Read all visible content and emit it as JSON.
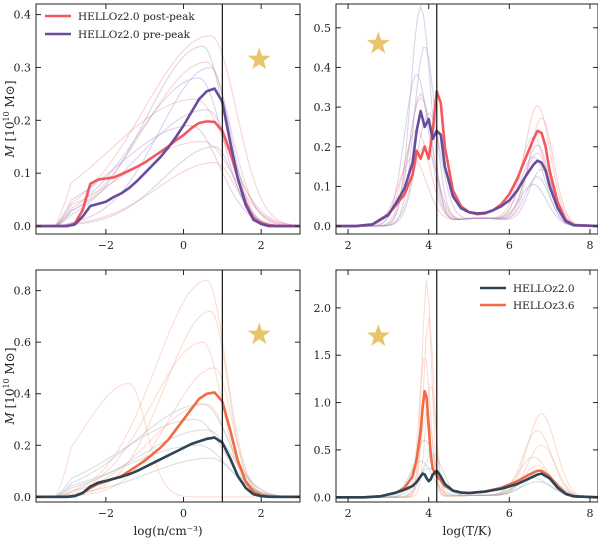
{
  "chart_data": [
    {
      "type": "line",
      "panel": "top-left",
      "xlim": [
        -3.8,
        3.0
      ],
      "ylim": [
        -0.015,
        0.42
      ],
      "xticks": [
        -2,
        0,
        2
      ],
      "yticks": [
        0.0,
        0.1,
        0.2,
        0.3,
        0.4
      ],
      "xlabel": "",
      "ylabel": "M [10^10 M⊙]",
      "vline_x": 1.0,
      "star": {
        "x": 1.95,
        "y": 0.315
      },
      "legend": {
        "placement": "top-left"
      },
      "bg_series": [
        {
          "color": "#f28b8b",
          "peak": 0.36,
          "center": 0.7,
          "width": 1.2
        },
        {
          "color": "#f28b8b",
          "peak": 0.31,
          "center": 0.6,
          "width": 1.1
        },
        {
          "color": "#f28b8b",
          "peak": 0.24,
          "center": 0.3,
          "width": 1.5
        },
        {
          "color": "#f28b8b",
          "peak": 0.16,
          "center": 0.5,
          "width": 1.4
        },
        {
          "color": "#f28b8b",
          "peak": 0.12,
          "center": 0.8,
          "width": 1.0
        },
        {
          "color": "#9a8fc8",
          "peak": 0.34,
          "center": 0.5,
          "width": 1.0
        },
        {
          "color": "#9a8fc8",
          "peak": 0.3,
          "center": 0.7,
          "width": 0.9
        },
        {
          "color": "#9a8fc8",
          "peak": 0.28,
          "center": 0.4,
          "width": 1.1
        },
        {
          "color": "#9a8fc8",
          "peak": 0.22,
          "center": 0.6,
          "width": 1.2
        },
        {
          "color": "#9a8fc8",
          "peak": 0.19,
          "center": 0.2,
          "width": 1.3
        },
        {
          "color": "#9a8fc8",
          "peak": 0.15,
          "center": 0.8,
          "width": 0.9
        }
      ],
      "series": [
        {
          "name": "HELLOz2.0 post-peak",
          "color": "#f4585c",
          "x": [
            -3.8,
            -3.0,
            -2.8,
            -2.6,
            -2.4,
            -2.2,
            -2.0,
            -1.8,
            -1.6,
            -1.4,
            -1.2,
            -1.0,
            -0.8,
            -0.6,
            -0.4,
            -0.2,
            0.0,
            0.2,
            0.4,
            0.6,
            0.8,
            1.0,
            1.2,
            1.4,
            1.6,
            1.8,
            2.0,
            2.2,
            2.4,
            2.6,
            2.8,
            3.0
          ],
          "y": [
            0.0,
            0.0,
            0.005,
            0.03,
            0.08,
            0.088,
            0.09,
            0.092,
            0.098,
            0.105,
            0.112,
            0.12,
            0.13,
            0.14,
            0.15,
            0.162,
            0.172,
            0.185,
            0.195,
            0.198,
            0.197,
            0.18,
            0.14,
            0.09,
            0.045,
            0.015,
            0.005,
            0.002,
            0.0,
            0.0,
            0.0,
            0.0
          ]
        },
        {
          "name": "HELLOz2.0 pre-peak",
          "color": "#6a4c9c",
          "x": [
            -3.8,
            -3.0,
            -2.8,
            -2.6,
            -2.4,
            -2.2,
            -2.0,
            -1.8,
            -1.6,
            -1.4,
            -1.2,
            -1.0,
            -0.8,
            -0.6,
            -0.4,
            -0.2,
            0.0,
            0.2,
            0.4,
            0.6,
            0.8,
            1.0,
            1.2,
            1.4,
            1.6,
            1.8,
            2.0,
            2.2,
            2.4,
            2.6,
            2.8,
            3.0
          ],
          "y": [
            0.0,
            0.0,
            0.003,
            0.018,
            0.038,
            0.042,
            0.046,
            0.055,
            0.062,
            0.072,
            0.085,
            0.1,
            0.115,
            0.13,
            0.148,
            0.168,
            0.19,
            0.215,
            0.24,
            0.255,
            0.26,
            0.235,
            0.16,
            0.09,
            0.04,
            0.012,
            0.004,
            0.0,
            0.0,
            0.0,
            0.0,
            0.0
          ]
        }
      ]
    },
    {
      "type": "line",
      "panel": "top-right",
      "xlim": [
        1.7,
        8.2
      ],
      "ylim": [
        -0.02,
        0.56
      ],
      "xticks": [
        2,
        4,
        6,
        8
      ],
      "yticks": [
        0.0,
        0.1,
        0.2,
        0.3,
        0.4,
        0.5
      ],
      "xlabel": "",
      "ylabel": "",
      "vline_x": 4.2,
      "star": {
        "x": 2.75,
        "y": 0.46
      },
      "bg_series": [
        {
          "color": "#f28b8b",
          "peaks": [
            [
              3.8,
              0.32,
              0.3
            ],
            [
              6.7,
              0.3,
              0.32
            ]
          ]
        },
        {
          "color": "#f28b8b",
          "peaks": [
            [
              3.7,
              0.24,
              0.32
            ],
            [
              6.8,
              0.27,
              0.3
            ]
          ]
        },
        {
          "color": "#f28b8b",
          "peaks": [
            [
              3.9,
              0.2,
              0.3
            ],
            [
              6.6,
              0.22,
              0.33
            ]
          ]
        },
        {
          "color": "#f28b8b",
          "peaks": [
            [
              3.6,
              0.17,
              0.35
            ],
            [
              6.7,
              0.18,
              0.32
            ]
          ]
        },
        {
          "color": "#9a8fc8",
          "peaks": [
            [
              3.8,
              0.55,
              0.25
            ],
            [
              6.7,
              0.2,
              0.3
            ]
          ]
        },
        {
          "color": "#9a8fc8",
          "peaks": [
            [
              3.9,
              0.45,
              0.26
            ],
            [
              6.6,
              0.17,
              0.32
            ]
          ]
        },
        {
          "color": "#9a8fc8",
          "peaks": [
            [
              3.7,
              0.38,
              0.3
            ],
            [
              6.8,
              0.14,
              0.3
            ]
          ]
        },
        {
          "color": "#9a8fc8",
          "peaks": [
            [
              3.8,
              0.33,
              0.28
            ],
            [
              6.7,
              0.12,
              0.3
            ]
          ]
        },
        {
          "color": "#9a8fc8",
          "peaks": [
            [
              4.0,
              0.28,
              0.3
            ],
            [
              6.6,
              0.1,
              0.33
            ]
          ]
        }
      ],
      "series": [
        {
          "name": "HELLOz2.0 post-peak",
          "color": "#f4585c",
          "x": [
            1.7,
            2.2,
            2.6,
            3.0,
            3.2,
            3.4,
            3.6,
            3.7,
            3.8,
            3.9,
            4.0,
            4.1,
            4.2,
            4.3,
            4.4,
            4.6,
            4.8,
            5.0,
            5.2,
            5.4,
            5.6,
            5.8,
            6.0,
            6.2,
            6.4,
            6.6,
            6.7,
            6.8,
            6.9,
            7.0,
            7.2,
            7.4,
            7.6,
            8.2
          ],
          "y": [
            0.0,
            0.0,
            0.004,
            0.03,
            0.055,
            0.08,
            0.13,
            0.19,
            0.17,
            0.2,
            0.17,
            0.24,
            0.34,
            0.31,
            0.2,
            0.09,
            0.05,
            0.035,
            0.03,
            0.032,
            0.04,
            0.055,
            0.08,
            0.12,
            0.17,
            0.22,
            0.24,
            0.235,
            0.2,
            0.14,
            0.06,
            0.015,
            0.003,
            0.0
          ]
        },
        {
          "name": "HELLOz2.0 pre-peak",
          "color": "#6a4c9c",
          "x": [
            1.7,
            2.2,
            2.6,
            3.0,
            3.2,
            3.4,
            3.6,
            3.7,
            3.8,
            3.9,
            4.0,
            4.1,
            4.2,
            4.3,
            4.4,
            4.6,
            4.8,
            5.0,
            5.2,
            5.4,
            5.6,
            5.8,
            6.0,
            6.2,
            6.4,
            6.6,
            6.7,
            6.8,
            6.9,
            7.0,
            7.2,
            7.4,
            7.6,
            8.2
          ],
          "y": [
            0.0,
            0.0,
            0.004,
            0.028,
            0.06,
            0.095,
            0.16,
            0.24,
            0.29,
            0.25,
            0.27,
            0.22,
            0.24,
            0.23,
            0.15,
            0.075,
            0.045,
            0.035,
            0.032,
            0.033,
            0.04,
            0.05,
            0.065,
            0.09,
            0.125,
            0.155,
            0.165,
            0.16,
            0.14,
            0.1,
            0.045,
            0.012,
            0.002,
            0.0
          ]
        }
      ]
    },
    {
      "type": "line",
      "panel": "bottom-left",
      "xlim": [
        -3.8,
        3.0
      ],
      "ylim": [
        -0.02,
        0.88
      ],
      "xticks": [
        -2,
        0,
        2
      ],
      "yticks": [
        0.0,
        0.2,
        0.4,
        0.6,
        0.8
      ],
      "xlabel": "log(n/cm⁻³)",
      "ylabel": "M [10^10 M⊙]",
      "vline_x": 1.0,
      "star": {
        "x": 1.95,
        "y": 0.63
      },
      "bg_series": [
        {
          "color": "#f4a58a",
          "peak": 0.84,
          "center": 0.6,
          "width": 0.9
        },
        {
          "color": "#f4a58a",
          "peak": 0.72,
          "center": 0.7,
          "width": 0.8
        },
        {
          "color": "#f4a58a",
          "peak": 0.6,
          "center": 0.5,
          "width": 0.9
        },
        {
          "color": "#f4a58a",
          "peak": 0.5,
          "center": 0.8,
          "width": 0.8
        },
        {
          "color": "#f4a58a",
          "peak": 0.44,
          "center": -1.4,
          "width": 0.8
        },
        {
          "color": "#f4a58a",
          "peak": 0.36,
          "center": 0.6,
          "width": 1.0
        },
        {
          "color": "#9aabb8",
          "peak": 0.36,
          "center": 0.5,
          "width": 1.2
        },
        {
          "color": "#9aabb8",
          "peak": 0.3,
          "center": 0.3,
          "width": 1.3
        },
        {
          "color": "#9aabb8",
          "peak": 0.26,
          "center": 0.6,
          "width": 1.2
        },
        {
          "color": "#9aabb8",
          "peak": 0.2,
          "center": 0.4,
          "width": 1.3
        },
        {
          "color": "#9aabb8",
          "peak": 0.15,
          "center": 0.7,
          "width": 1.1
        }
      ],
      "series": [
        {
          "name": "HELLOz3.6",
          "color": "#ef6a45",
          "x": [
            -3.8,
            -3.0,
            -2.8,
            -2.6,
            -2.4,
            -2.2,
            -2.0,
            -1.8,
            -1.6,
            -1.4,
            -1.2,
            -1.0,
            -0.8,
            -0.6,
            -0.4,
            -0.2,
            0.0,
            0.2,
            0.4,
            0.6,
            0.8,
            1.0,
            1.2,
            1.4,
            1.6,
            1.8,
            2.0,
            2.2,
            2.4,
            2.6,
            2.8,
            3.0
          ],
          "y": [
            0.0,
            0.0,
            0.004,
            0.015,
            0.035,
            0.05,
            0.06,
            0.07,
            0.08,
            0.1,
            0.12,
            0.14,
            0.165,
            0.19,
            0.22,
            0.26,
            0.3,
            0.34,
            0.38,
            0.4,
            0.405,
            0.37,
            0.26,
            0.14,
            0.06,
            0.02,
            0.006,
            0.002,
            0.0,
            0.0,
            0.0,
            0.0
          ]
        },
        {
          "name": "HELLOz2.0",
          "color": "#2c4454",
          "x": [
            -3.8,
            -3.0,
            -2.8,
            -2.6,
            -2.4,
            -2.2,
            -2.0,
            -1.8,
            -1.6,
            -1.4,
            -1.2,
            -1.0,
            -0.8,
            -0.6,
            -0.4,
            -0.2,
            0.0,
            0.2,
            0.4,
            0.6,
            0.8,
            1.0,
            1.2,
            1.4,
            1.6,
            1.8,
            2.0,
            2.2,
            2.4,
            2.6,
            2.8,
            3.0
          ],
          "y": [
            0.0,
            0.0,
            0.003,
            0.015,
            0.04,
            0.055,
            0.062,
            0.07,
            0.078,
            0.088,
            0.1,
            0.115,
            0.13,
            0.145,
            0.16,
            0.175,
            0.19,
            0.205,
            0.215,
            0.225,
            0.23,
            0.21,
            0.15,
            0.08,
            0.035,
            0.01,
            0.003,
            0.0,
            0.0,
            0.0,
            0.0,
            0.0
          ]
        }
      ]
    },
    {
      "type": "line",
      "panel": "bottom-right",
      "xlim": [
        1.7,
        8.2
      ],
      "ylim": [
        -0.05,
        2.4
      ],
      "xticks": [
        2,
        4,
        6,
        8
      ],
      "yticks": [
        0.0,
        0.5,
        1.0,
        1.5,
        2.0
      ],
      "xlabel": "log(T/K)",
      "ylabel": "",
      "vline_x": 4.2,
      "star": {
        "x": 2.75,
        "y": 1.7
      },
      "legend": {
        "placement": "top-right"
      },
      "bg_series": [
        {
          "color": "#f4a58a",
          "peaks": [
            [
              3.95,
              2.3,
              0.12
            ],
            [
              6.8,
              0.88,
              0.35
            ]
          ]
        },
        {
          "color": "#f4a58a",
          "peaks": [
            [
              4.0,
              1.9,
              0.13
            ],
            [
              6.7,
              0.7,
              0.36
            ]
          ]
        },
        {
          "color": "#f4a58a",
          "peaks": [
            [
              3.9,
              1.5,
              0.14
            ],
            [
              6.8,
              0.55,
              0.35
            ]
          ]
        },
        {
          "color": "#f4a58a",
          "peaks": [
            [
              4.05,
              1.2,
              0.13
            ],
            [
              6.6,
              0.42,
              0.37
            ]
          ]
        },
        {
          "color": "#f4a58a",
          "peaks": [
            [
              3.95,
              0.9,
              0.15
            ],
            [
              6.7,
              0.33,
              0.35
            ]
          ]
        },
        {
          "color": "#9aabb8",
          "peaks": [
            [
              3.9,
              0.6,
              0.25
            ],
            [
              6.7,
              0.28,
              0.4
            ]
          ]
        },
        {
          "color": "#9aabb8",
          "peaks": [
            [
              4.1,
              0.45,
              0.25
            ],
            [
              6.8,
              0.24,
              0.4
            ]
          ]
        },
        {
          "color": "#9aabb8",
          "peaks": [
            [
              3.8,
              0.38,
              0.28
            ],
            [
              6.6,
              0.2,
              0.4
            ]
          ]
        },
        {
          "color": "#9aabb8",
          "peaks": [
            [
              4.0,
              0.3,
              0.3
            ],
            [
              6.7,
              0.16,
              0.4
            ]
          ]
        }
      ],
      "series": [
        {
          "name": "HELLOz3.6",
          "color": "#ef6a45",
          "x": [
            1.7,
            2.4,
            2.8,
            3.2,
            3.4,
            3.6,
            3.7,
            3.8,
            3.85,
            3.9,
            3.95,
            4.0,
            4.05,
            4.1,
            4.2,
            4.3,
            4.4,
            4.6,
            4.8,
            5.0,
            5.4,
            5.8,
            6.2,
            6.5,
            6.7,
            6.8,
            7.0,
            7.2,
            7.4,
            7.6,
            8.2
          ],
          "y": [
            0.0,
            0.0,
            0.01,
            0.05,
            0.1,
            0.22,
            0.4,
            0.7,
            0.95,
            1.12,
            1.05,
            0.75,
            0.45,
            0.3,
            0.22,
            0.18,
            0.12,
            0.07,
            0.05,
            0.045,
            0.06,
            0.1,
            0.17,
            0.24,
            0.28,
            0.28,
            0.22,
            0.12,
            0.04,
            0.01,
            0.0
          ]
        },
        {
          "name": "HELLOz2.0",
          "color": "#2c4454",
          "x": [
            1.7,
            2.4,
            2.8,
            3.2,
            3.4,
            3.6,
            3.7,
            3.8,
            3.85,
            3.9,
            3.95,
            4.0,
            4.05,
            4.1,
            4.2,
            4.3,
            4.4,
            4.6,
            4.8,
            5.0,
            5.4,
            5.8,
            6.2,
            6.5,
            6.7,
            6.8,
            7.0,
            7.2,
            7.4,
            7.6,
            8.2
          ],
          "y": [
            0.0,
            0.0,
            0.01,
            0.05,
            0.08,
            0.12,
            0.16,
            0.22,
            0.25,
            0.24,
            0.2,
            0.17,
            0.19,
            0.24,
            0.28,
            0.22,
            0.14,
            0.07,
            0.05,
            0.045,
            0.06,
            0.09,
            0.14,
            0.2,
            0.24,
            0.25,
            0.2,
            0.1,
            0.035,
            0.01,
            0.0
          ]
        }
      ]
    }
  ]
}
